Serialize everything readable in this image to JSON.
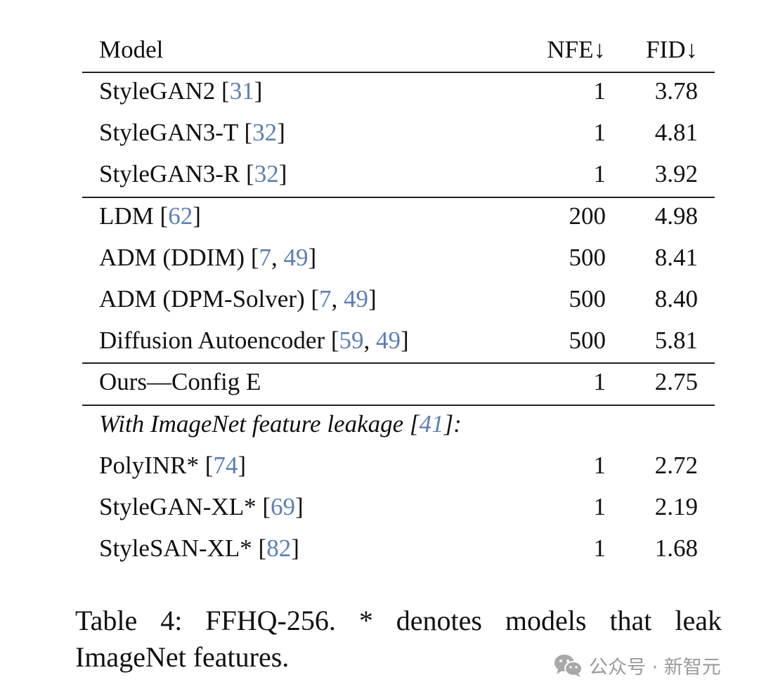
{
  "table": {
    "headers": {
      "model": "Model",
      "nfe": "NFE↓",
      "fid": "FID↓"
    },
    "groups": [
      [
        {
          "model": "StyleGAN2",
          "cites": [
            "31"
          ],
          "nfe": "1",
          "fid": "3.78"
        },
        {
          "model": "StyleGAN3-T",
          "cites": [
            "32"
          ],
          "nfe": "1",
          "fid": "4.81"
        },
        {
          "model": "StyleGAN3-R",
          "cites": [
            "32"
          ],
          "nfe": "1",
          "fid": "3.92"
        }
      ],
      [
        {
          "model": "LDM",
          "cites": [
            "62"
          ],
          "nfe": "200",
          "fid": "4.98"
        },
        {
          "model": "ADM (DDIM)",
          "cites": [
            "7",
            "49"
          ],
          "nfe": "500",
          "fid": "8.41"
        },
        {
          "model": "ADM (DPM-Solver)",
          "cites": [
            "7",
            "49"
          ],
          "nfe": "500",
          "fid": "8.40"
        },
        {
          "model": "Diffusion Autoencoder",
          "cites": [
            "59",
            "49"
          ],
          "nfe": "500",
          "fid": "5.81"
        }
      ],
      [
        {
          "model": "Ours—Config E",
          "cites": [],
          "nfe": "1",
          "fid": "2.75"
        }
      ]
    ],
    "leakage_label": {
      "text": "With ImageNet feature leakage",
      "cites": [
        "41"
      ],
      "suffix": ":"
    },
    "leakage_rows": [
      {
        "model": "PolyINR*",
        "cites": [
          "74"
        ],
        "nfe": "1",
        "fid": "2.72"
      },
      {
        "model": "StyleGAN-XL*",
        "cites": [
          "69"
        ],
        "nfe": "1",
        "fid": "2.19"
      },
      {
        "model": "StyleSAN-XL*",
        "cites": [
          "82"
        ],
        "nfe": "1",
        "fid": "1.68"
      }
    ]
  },
  "caption": "Table 4: FFHQ-256.  * denotes models that leak ImageNet features.",
  "watermark": {
    "text": "公众号 · 新智元",
    "icon": "wechat-icon"
  },
  "colors": {
    "citation": "#5b7fb5",
    "rule": "#222222",
    "watermark": "#9a9a9a"
  }
}
